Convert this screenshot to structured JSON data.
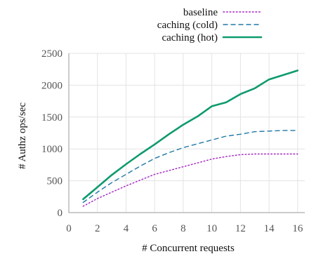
{
  "chart_data": {
    "type": "line",
    "xlabel": "# Concurrent requests",
    "ylabel": "# Authz ops/sec",
    "xlim": [
      0,
      16.5
    ],
    "ylim": [
      0,
      2500
    ],
    "xticks": [
      0,
      2,
      4,
      6,
      8,
      10,
      12,
      14,
      16
    ],
    "yticks": [
      0,
      500,
      1000,
      1500,
      2000,
      2500
    ],
    "grid": true,
    "legend_position": "top-right",
    "x": [
      1,
      2,
      3,
      4,
      5,
      6,
      7,
      8,
      9,
      10,
      11,
      12,
      13,
      14,
      15,
      16
    ],
    "series": [
      {
        "name": "baseline",
        "style": "dotted",
        "color": "#a020c0",
        "values": [
          100,
          220,
          320,
          420,
          510,
          600,
          660,
          720,
          780,
          840,
          880,
          910,
          920,
          920,
          920,
          920
        ]
      },
      {
        "name": "caching (cold)",
        "style": "dashed",
        "color": "#1f78a8",
        "values": [
          160,
          320,
          470,
          600,
          730,
          850,
          940,
          1020,
          1080,
          1140,
          1200,
          1230,
          1270,
          1280,
          1290,
          1290
        ]
      },
      {
        "name": "caching (hot)",
        "style": "solid",
        "color": "#0f9a6e",
        "values": [
          210,
          400,
          590,
          760,
          920,
          1070,
          1230,
          1380,
          1510,
          1670,
          1730,
          1860,
          1950,
          2090,
          2160,
          2230
        ]
      }
    ]
  }
}
